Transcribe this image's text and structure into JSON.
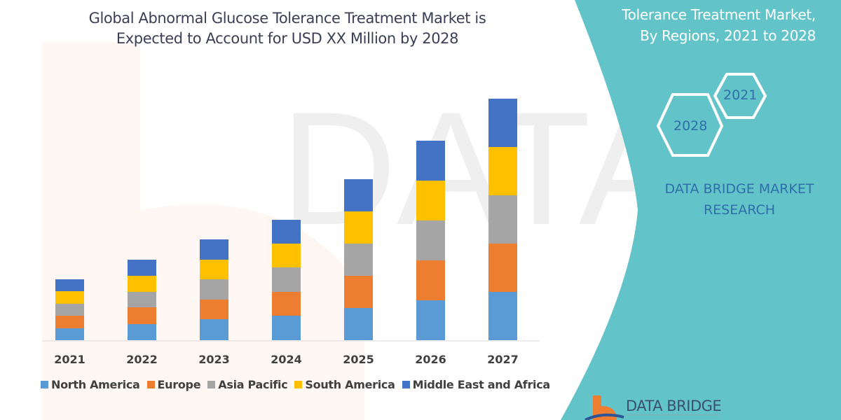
{
  "header": {
    "title_line1": "Global Abnormal Glucose Tolerance Treatment Market is",
    "title_line2": "Expected to Account for USD XX Million by 2028"
  },
  "side_panel": {
    "title_line1": "Tolerance Treatment Market,",
    "title_line2": "By Regions, 2021 to 2028",
    "hex_start": "2021",
    "hex_end": "2028",
    "brand_line1": "DATA BRIDGE MARKET",
    "brand_line2": "RESEARCH",
    "logo_text": "DATA BRIDGE",
    "panel_color": "#62c3c9"
  },
  "chart_data": {
    "type": "bar",
    "stacked": true,
    "categories": [
      "2021",
      "2022",
      "2023",
      "2024",
      "2025",
      "2026",
      "2027"
    ],
    "series": [
      {
        "name": "North America",
        "color": "#5b9bd5",
        "values": [
          17,
          23,
          30,
          35,
          46,
          57,
          69
        ]
      },
      {
        "name": "Europe",
        "color": "#ed7d31",
        "values": [
          18,
          24,
          28,
          34,
          46,
          57,
          69
        ]
      },
      {
        "name": "Asia Pacific",
        "color": "#a5a5a5",
        "values": [
          17,
          22,
          29,
          35,
          46,
          57,
          69
        ]
      },
      {
        "name": "South America",
        "color": "#ffc000",
        "values": [
          18,
          23,
          28,
          34,
          46,
          57,
          69
        ]
      },
      {
        "name": "Middle East and Africa",
        "color": "#4472c4",
        "values": [
          17,
          23,
          29,
          34,
          46,
          57,
          69
        ]
      }
    ],
    "grid": false,
    "legend_position": "bottom",
    "y_axis_shown": false
  }
}
